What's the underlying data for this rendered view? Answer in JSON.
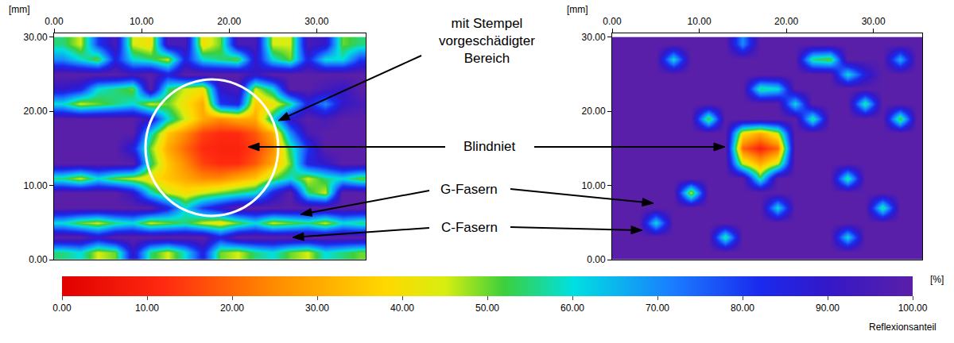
{
  "chart_data": [
    {
      "type": "heatmap",
      "x_label": "[mm]",
      "x": [
        1,
        3,
        5,
        7,
        9,
        11,
        13,
        15,
        17,
        19,
        21,
        23,
        25,
        27,
        29,
        31,
        33,
        35
      ],
      "y": [
        29,
        27,
        25,
        23,
        21,
        19,
        17,
        15,
        13,
        11,
        9,
        7,
        5,
        3,
        1
      ],
      "z": [
        [
          55,
          45,
          80,
          95,
          45,
          40,
          95,
          95,
          40,
          50,
          95,
          95,
          45,
          45,
          95,
          90,
          50,
          55
        ],
        [
          70,
          60,
          50,
          85,
          60,
          55,
          45,
          85,
          60,
          55,
          50,
          90,
          60,
          50,
          85,
          60,
          60,
          80
        ],
        [
          100,
          100,
          100,
          100,
          95,
          100,
          85,
          100,
          100,
          100,
          100,
          90,
          100,
          100,
          100,
          100,
          100,
          100
        ],
        [
          90,
          85,
          60,
          55,
          50,
          100,
          55,
          45,
          40,
          90,
          95,
          45,
          60,
          100,
          100,
          95,
          90,
          100
        ],
        [
          60,
          45,
          50,
          55,
          60,
          45,
          50,
          40,
          30,
          80,
          85,
          35,
          40,
          55,
          85,
          70,
          90,
          95
        ],
        [
          100,
          100,
          100,
          100,
          100,
          90,
          60,
          45,
          30,
          25,
          30,
          30,
          60,
          90,
          100,
          95,
          100,
          100
        ],
        [
          100,
          100,
          100,
          100,
          100,
          60,
          35,
          25,
          15,
          12,
          12,
          18,
          30,
          70,
          95,
          100,
          100,
          100
        ],
        [
          100,
          100,
          100,
          100,
          85,
          50,
          30,
          20,
          12,
          10,
          10,
          15,
          25,
          55,
          80,
          100,
          100,
          100
        ],
        [
          100,
          100,
          100,
          100,
          100,
          55,
          35,
          25,
          15,
          12,
          12,
          18,
          30,
          50,
          85,
          90,
          100,
          100
        ],
        [
          55,
          45,
          60,
          50,
          45,
          40,
          35,
          30,
          25,
          25,
          30,
          35,
          50,
          60,
          45,
          55,
          60,
          50
        ],
        [
          100,
          100,
          100,
          100,
          90,
          60,
          45,
          40,
          45,
          50,
          55,
          60,
          85,
          100,
          55,
          45,
          100,
          100
        ],
        [
          100,
          100,
          100,
          100,
          100,
          100,
          85,
          60,
          80,
          90,
          100,
          100,
          100,
          100,
          100,
          100,
          100,
          100
        ],
        [
          60,
          50,
          45,
          55,
          60,
          45,
          50,
          55,
          45,
          40,
          50,
          60,
          45,
          50,
          55,
          45,
          60,
          55
        ],
        [
          100,
          100,
          90,
          100,
          100,
          100,
          100,
          100,
          100,
          85,
          100,
          100,
          100,
          100,
          100,
          100,
          100,
          100
        ],
        [
          55,
          60,
          45,
          50,
          90,
          55,
          45,
          60,
          85,
          50,
          45,
          55,
          60,
          50,
          45,
          60,
          55,
          50
        ]
      ],
      "xlim": [
        0,
        35.6
      ],
      "ylim": [
        0,
        30.5
      ],
      "xticks": [
        {
          "value": 0,
          "label": "0.00"
        },
        {
          "value": 10,
          "label": "10.00"
        },
        {
          "value": 20,
          "label": "20.00"
        },
        {
          "value": 30,
          "label": "30.00"
        }
      ],
      "yticks": [
        {
          "value": 0,
          "label": "0.00"
        },
        {
          "value": 10,
          "label": "10.00"
        },
        {
          "value": 20,
          "label": "20.00"
        },
        {
          "value": 30,
          "label": "30.00"
        }
      ]
    },
    {
      "type": "heatmap",
      "x_label": "[mm]",
      "x": [
        1,
        3,
        5,
        7,
        9,
        11,
        13,
        15,
        17,
        19,
        21,
        23,
        25,
        27,
        29,
        31,
        33,
        35
      ],
      "y": [
        29,
        27,
        25,
        23,
        21,
        19,
        17,
        15,
        13,
        11,
        9,
        7,
        5,
        3,
        1
      ],
      "z": [
        [
          100,
          100,
          100,
          100,
          100,
          100,
          100,
          70,
          100,
          100,
          100,
          100,
          100,
          100,
          100,
          100,
          100,
          100
        ],
        [
          100,
          100,
          100,
          60,
          100,
          100,
          100,
          100,
          100,
          100,
          100,
          55,
          50,
          100,
          100,
          100,
          65,
          100
        ],
        [
          100,
          100,
          100,
          100,
          100,
          100,
          100,
          100,
          100,
          100,
          100,
          100,
          100,
          60,
          85,
          100,
          100,
          100
        ],
        [
          100,
          100,
          100,
          100,
          100,
          100,
          100,
          100,
          55,
          60,
          100,
          100,
          100,
          100,
          100,
          100,
          100,
          100
        ],
        [
          100,
          100,
          100,
          100,
          100,
          100,
          100,
          100,
          100,
          100,
          60,
          100,
          100,
          100,
          55,
          100,
          100,
          100
        ],
        [
          100,
          100,
          100,
          100,
          100,
          50,
          100,
          100,
          100,
          100,
          100,
          55,
          100,
          100,
          100,
          100,
          50,
          100
        ],
        [
          100,
          100,
          100,
          100,
          100,
          100,
          100,
          40,
          30,
          45,
          100,
          100,
          100,
          100,
          100,
          100,
          100,
          100
        ],
        [
          100,
          100,
          100,
          100,
          100,
          100,
          100,
          20,
          10,
          20,
          100,
          100,
          100,
          100,
          100,
          100,
          100,
          100
        ],
        [
          100,
          100,
          100,
          100,
          100,
          100,
          100,
          45,
          30,
          45,
          100,
          100,
          100,
          100,
          100,
          100,
          100,
          100
        ],
        [
          100,
          100,
          100,
          100,
          100,
          100,
          100,
          100,
          55,
          100,
          100,
          100,
          100,
          55,
          100,
          100,
          100,
          100
        ],
        [
          100,
          100,
          100,
          100,
          45,
          100,
          100,
          100,
          100,
          100,
          100,
          100,
          100,
          100,
          100,
          100,
          100,
          100
        ],
        [
          100,
          100,
          100,
          100,
          100,
          100,
          100,
          100,
          100,
          60,
          100,
          100,
          100,
          100,
          100,
          55,
          100,
          100
        ],
        [
          100,
          100,
          60,
          100,
          100,
          100,
          100,
          100,
          100,
          100,
          100,
          100,
          100,
          100,
          100,
          100,
          100,
          100
        ],
        [
          100,
          100,
          100,
          100,
          100,
          100,
          55,
          100,
          100,
          100,
          100,
          100,
          100,
          60,
          100,
          100,
          100,
          100
        ],
        [
          100,
          100,
          100,
          100,
          100,
          100,
          100,
          100,
          100,
          100,
          100,
          100,
          100,
          100,
          100,
          100,
          100,
          100
        ]
      ],
      "xlim": [
        0,
        35.6
      ],
      "ylim": [
        0,
        30.5
      ],
      "xticks": [
        {
          "value": 0,
          "label": "0.00"
        },
        {
          "value": 10,
          "label": "10.00"
        },
        {
          "value": 20,
          "label": "20.00"
        },
        {
          "value": 30,
          "label": "30.00"
        }
      ],
      "yticks": [
        {
          "value": 0,
          "label": "0.00"
        },
        {
          "value": 10,
          "label": "10.00"
        },
        {
          "value": 20,
          "label": "20.00"
        },
        {
          "value": 30,
          "label": "30.00"
        }
      ]
    }
  ],
  "color_bar": {
    "range": [
      0,
      100
    ],
    "unit": "[%]",
    "title": "Reflexionsanteil",
    "ticks": [
      {
        "value": 0,
        "label": "0.00"
      },
      {
        "value": 10,
        "label": "10.00"
      },
      {
        "value": 20,
        "label": "20.00"
      },
      {
        "value": 30,
        "label": "30.00"
      },
      {
        "value": 40,
        "label": "40.00"
      },
      {
        "value": 50,
        "label": "50.00"
      },
      {
        "value": 60,
        "label": "60.00"
      },
      {
        "value": 70,
        "label": "70.00"
      },
      {
        "value": 80,
        "label": "80.00"
      },
      {
        "value": 90,
        "label": "90.00"
      },
      {
        "value": 100,
        "label": "100.00"
      }
    ]
  },
  "annotations": [
    [
      "mit Stempel",
      "vorgeschädigter",
      "Bereich"
    ],
    [
      "Blindniet"
    ],
    [
      "G-Fasern"
    ],
    [
      "C-Fasern"
    ]
  ]
}
